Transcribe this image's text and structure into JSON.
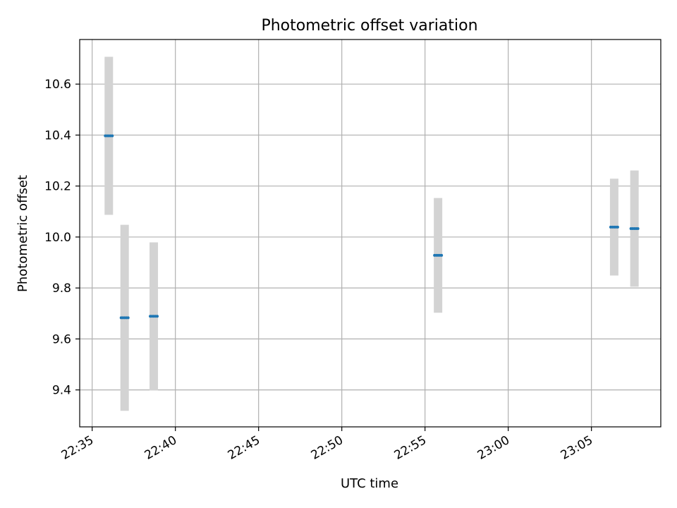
{
  "chart_data": {
    "type": "scatter",
    "title": "Photometric offset variation",
    "xlabel": "UTC time",
    "ylabel": "Photometric offset",
    "xlim": [
      "22:34:15",
      "23:09:10"
    ],
    "ylim": [
      9.255,
      10.775
    ],
    "xticks": [
      "22:35",
      "22:40",
      "22:45",
      "22:50",
      "22:55",
      "23:00",
      "23:05"
    ],
    "yticks": [
      "9.4",
      "9.6",
      "9.8",
      "10.0",
      "10.2",
      "10.4",
      "10.6"
    ],
    "grid": true,
    "series": [
      {
        "points": [
          {
            "x": "22:36:00",
            "y": 10.397,
            "err": 0.31
          },
          {
            "x": "22:36:57",
            "y": 9.683,
            "err": 0.365
          },
          {
            "x": "22:38:42",
            "y": 9.689,
            "err": 0.29
          },
          {
            "x": "22:55:47",
            "y": 9.928,
            "err": 0.225
          },
          {
            "x": "23:06:22",
            "y": 10.039,
            "err": 0.19
          },
          {
            "x": "23:07:35",
            "y": 10.033,
            "err": 0.228
          }
        ],
        "color": "#1f77b4",
        "error_color": "#d3d3d3"
      }
    ]
  }
}
